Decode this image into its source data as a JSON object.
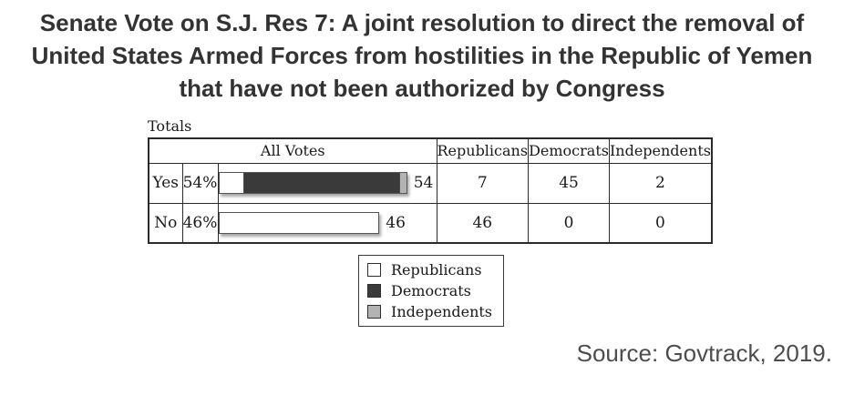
{
  "title": {
    "lines": [
      "Senate Vote on S.J. Res 7: A joint resolution to direct the removal of",
      "United States Armed Forces from hostilities in the Republic of Yemen",
      "that have not been authorized by Congress"
    ]
  },
  "table": {
    "corner_label": "Totals",
    "headers": {
      "all_votes": "All Votes",
      "republicans": "Republicans",
      "democrats": "Democrats",
      "independents": "Independents"
    },
    "rows": [
      {
        "label": "Yes",
        "percent": "54%",
        "total": 54,
        "republicans": 7,
        "democrats": 45,
        "independents": 2
      },
      {
        "label": "No",
        "percent": "46%",
        "total": 46,
        "republicans": 46,
        "democrats": 0,
        "independents": 0
      }
    ]
  },
  "legend": {
    "items": [
      {
        "label": "Republicans",
        "color": "#ffffff"
      },
      {
        "label": "Democrats",
        "color": "#3a3a3a"
      },
      {
        "label": "Independents",
        "color": "#b3b3b3"
      }
    ]
  },
  "source": "Source: Govtrack, 2019.",
  "colors": {
    "republicans": "#ffffff",
    "democrats": "#3a3a3a",
    "independents": "#b3b3b3",
    "border": "#2b2b2b",
    "title_text": "#333333",
    "source_text": "#4d4d4d"
  },
  "chart_data": {
    "type": "bar",
    "title": "Senate Vote on S.J. Res 7: A joint resolution to direct the removal of United States Armed Forces from hostilities in the Republic of Yemen that have not been authorized by Congress",
    "subtitle": "Totals",
    "categories": [
      "Yes",
      "No"
    ],
    "series": [
      {
        "name": "Republicans",
        "values": [
          7,
          46
        ],
        "color": "#ffffff"
      },
      {
        "name": "Democrats",
        "values": [
          45,
          0
        ],
        "color": "#3a3a3a"
      },
      {
        "name": "Independents",
        "values": [
          2,
          0
        ],
        "color": "#b3b3b3"
      }
    ],
    "totals": [
      54,
      46
    ],
    "percents": [
      "54%",
      "46%"
    ],
    "bar_value_labels": [
      54,
      46
    ],
    "xlim": [
      0,
      54
    ],
    "orientation": "horizontal",
    "stacked": true,
    "grid": false,
    "legend_entries": [
      "Republicans",
      "Democrats",
      "Independents"
    ],
    "legend_position": "below-table",
    "annotation": "Source: Govtrack, 2019."
  }
}
